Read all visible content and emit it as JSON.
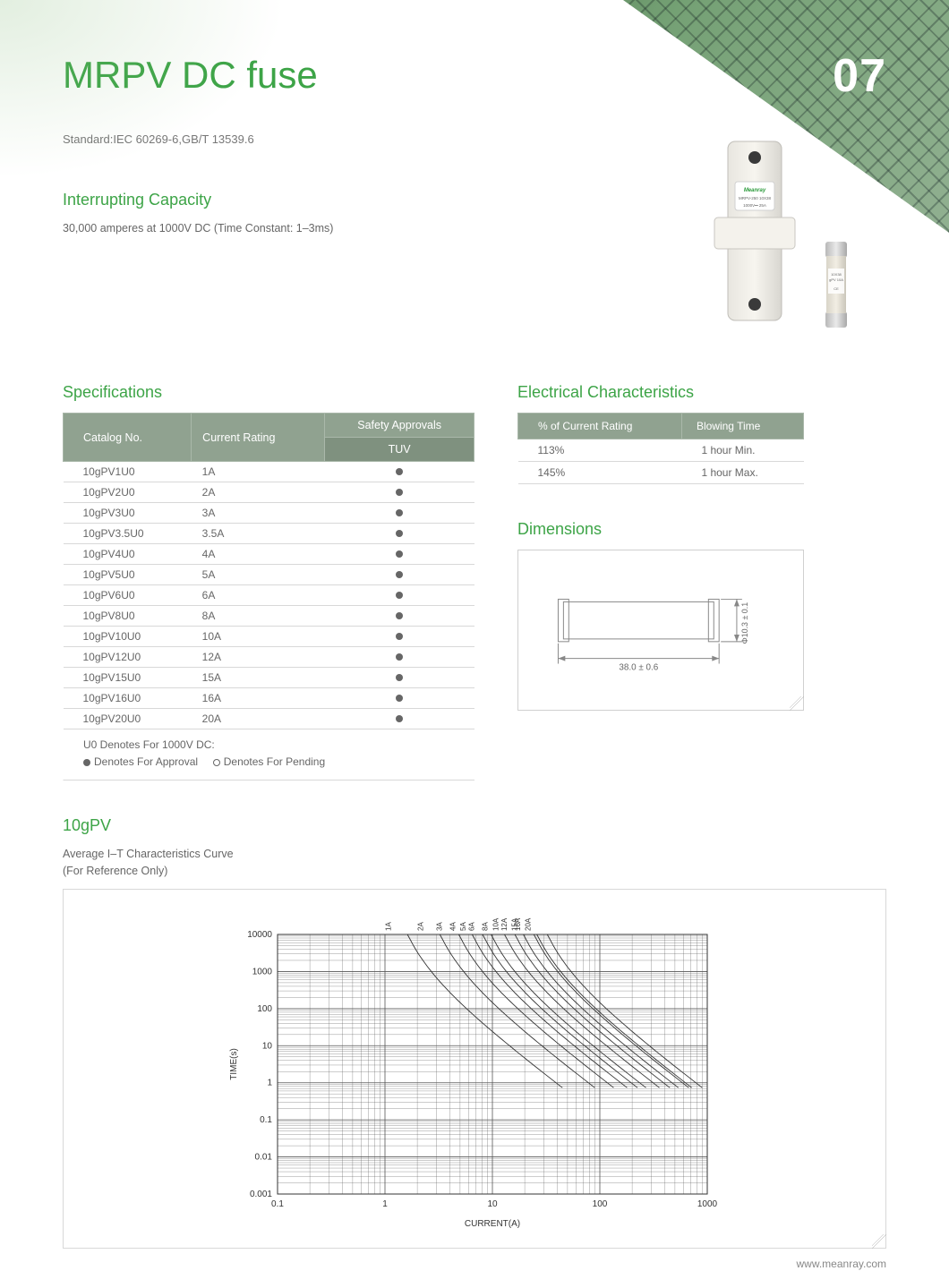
{
  "page_number": "07",
  "colors": {
    "accent_green": "#3da447",
    "header_bg": "#90a290",
    "header_bg_dark": "#7f917f",
    "text_grey": "#666666",
    "border_grey": "#d8d8d8"
  },
  "header": {
    "title": "MRPV DC fuse",
    "standard": "Standard:IEC 60269-6,GB/T 13539.6"
  },
  "interrupting": {
    "heading": "Interrupting Capacity",
    "text": "30,000 amperes at 1000V DC (Time Constant: 1–3ms)"
  },
  "specifications": {
    "heading": "Specifications",
    "columns": {
      "catalog": "Catalog No.",
      "current": "Current Rating",
      "safety": "Safety Approvals",
      "tuv": "TUV"
    },
    "rows": [
      {
        "catalog": "10gPV1U0",
        "current": "1A",
        "tuv": true
      },
      {
        "catalog": "10gPV2U0",
        "current": "2A",
        "tuv": true
      },
      {
        "catalog": "10gPV3U0",
        "current": "3A",
        "tuv": true
      },
      {
        "catalog": "10gPV3.5U0",
        "current": "3.5A",
        "tuv": true
      },
      {
        "catalog": "10gPV4U0",
        "current": "4A",
        "tuv": true
      },
      {
        "catalog": "10gPV5U0",
        "current": "5A",
        "tuv": true
      },
      {
        "catalog": "10gPV6U0",
        "current": "6A",
        "tuv": true
      },
      {
        "catalog": "10gPV8U0",
        "current": "8A",
        "tuv": true
      },
      {
        "catalog": "10gPV10U0",
        "current": "10A",
        "tuv": true
      },
      {
        "catalog": "10gPV12U0",
        "current": "12A",
        "tuv": true
      },
      {
        "catalog": "10gPV15U0",
        "current": "15A",
        "tuv": true
      },
      {
        "catalog": "10gPV16U0",
        "current": "16A",
        "tuv": true
      },
      {
        "catalog": "10gPV20U0",
        "current": "20A",
        "tuv": true
      }
    ],
    "legend": {
      "line1": "U0 Denotes For 1000V DC:",
      "approved": "Denotes For Approval",
      "pending": "Denotes For Pending"
    }
  },
  "electrical": {
    "heading": "Electrical Characteristics",
    "columns": {
      "pct": "% of Current Rating",
      "time": "Blowing Time"
    },
    "rows": [
      {
        "pct": "113%",
        "time": "1 hour Min."
      },
      {
        "pct": "145%",
        "time": "1 hour Max."
      }
    ]
  },
  "dimensions": {
    "heading": "Dimensions",
    "length": "38.0 ± 0.6",
    "diameter": "Φ10.3 ± 0.1"
  },
  "chart": {
    "heading": "10gPV",
    "subtitle1": "Average I–T Characteristics Curve",
    "subtitle2": "(For Reference Only)",
    "ylabel": "TIME(s)",
    "xlabel": "CURRENT(A)",
    "x_log_min": 0.1,
    "x_log_max": 1000,
    "y_log_min": 0.001,
    "y_log_max": 10000,
    "x_ticks": [
      "0.1",
      "1",
      "10",
      "100",
      "1000"
    ],
    "y_ticks": [
      "0.001",
      "0.01",
      "0.1",
      "1",
      "10",
      "100",
      "1000",
      "10000"
    ],
    "series_labels": [
      "1A",
      "2A",
      "3A",
      "4A",
      "5A",
      "6A",
      "8A",
      "10A",
      "12A",
      "15A",
      "16A",
      "20A"
    ],
    "curve_color": "#333333",
    "grid_color": "#555555"
  },
  "footer": {
    "url": "www.meanray.com"
  }
}
